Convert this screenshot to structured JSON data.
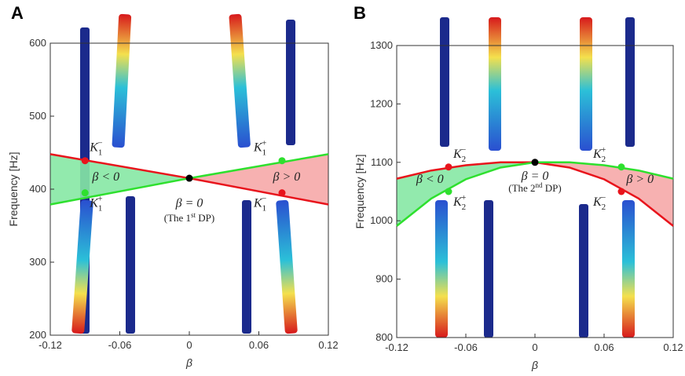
{
  "chart_data": [
    {
      "type": "line",
      "panel": "A",
      "xlabel": "β",
      "ylabel": "Frequency [Hz]",
      "x": [
        -0.12,
        0,
        0.12
      ],
      "xlim": [
        -0.12,
        0.12
      ],
      "xticks": [
        -0.12,
        -0.06,
        0,
        0.06,
        0.12
      ],
      "ylim": [
        200,
        600
      ],
      "yticks": [
        200,
        300,
        400,
        500,
        600
      ],
      "series": [
        {
          "color": "#e8141c",
          "values": [
            448,
            415,
            379
          ]
        },
        {
          "color": "#2ee02e",
          "values": [
            379,
            415,
            448
          ]
        }
      ],
      "fill_left_color": "#86e8a4",
      "fill_right_color": "#f6a9a9",
      "markers": [
        {
          "label": "K",
          "sub": "1",
          "sup": "−",
          "x": -0.09,
          "y": 439,
          "color": "#e8141c"
        },
        {
          "label": "K",
          "sub": "1",
          "sup": "+",
          "x": -0.09,
          "y": 395,
          "color": "#2ee02e"
        },
        {
          "label": "K",
          "sub": "1",
          "sup": "+",
          "x": 0.08,
          "y": 439,
          "color": "#2ee02e"
        },
        {
          "label": "K",
          "sub": "1",
          "sup": "−",
          "x": 0.08,
          "y": 395,
          "color": "#e8141c"
        },
        {
          "x": 0,
          "y": 415,
          "color": "#000000"
        }
      ],
      "annotations": [
        "β < 0",
        "β > 0",
        "β = 0"
      ],
      "note": {
        "before": "(The 1",
        "sup": "st",
        "after": " DP)"
      }
    },
    {
      "type": "line",
      "panel": "B",
      "xlabel": "β",
      "ylabel": "Frequency [Hz]",
      "x": [
        -0.12,
        -0.09,
        -0.06,
        -0.03,
        0,
        0.03,
        0.06,
        0.09,
        0.12
      ],
      "xlim": [
        -0.12,
        0.12
      ],
      "xticks": [
        -0.12,
        -0.06,
        0,
        0.06,
        0.12
      ],
      "ylim": [
        800,
        1300
      ],
      "yticks": [
        800,
        900,
        1000,
        1100,
        1200,
        1300
      ],
      "series": [
        {
          "color": "#e8141c",
          "values": [
            1072,
            1086,
            1095,
            1100,
            1100,
            1091,
            1071,
            1038,
            991
          ]
        },
        {
          "color": "#2ee02e",
          "values": [
            991,
            1038,
            1071,
            1091,
            1100,
            1100,
            1095,
            1086,
            1072
          ]
        }
      ],
      "fill_left_color": "#86e8a4",
      "fill_right_color": "#f6a9a9",
      "markers": [
        {
          "label": "K",
          "sub": "2",
          "sup": "−",
          "x": -0.075,
          "y": 1092,
          "color": "#e8141c"
        },
        {
          "label": "K",
          "sub": "2",
          "sup": "+",
          "x": -0.075,
          "y": 1050,
          "color": "#2ee02e"
        },
        {
          "label": "K",
          "sub": "2",
          "sup": "+",
          "x": 0.075,
          "y": 1092,
          "color": "#2ee02e"
        },
        {
          "label": "K",
          "sub": "2",
          "sup": "−",
          "x": 0.075,
          "y": 1050,
          "color": "#e8141c"
        },
        {
          "x": 0,
          "y": 1100,
          "color": "#000000"
        }
      ],
      "annotations": [
        "β < 0",
        "β > 0",
        "β = 0"
      ],
      "note": {
        "before": "(The 2",
        "sup": "nd",
        "after": " DP)"
      }
    }
  ]
}
